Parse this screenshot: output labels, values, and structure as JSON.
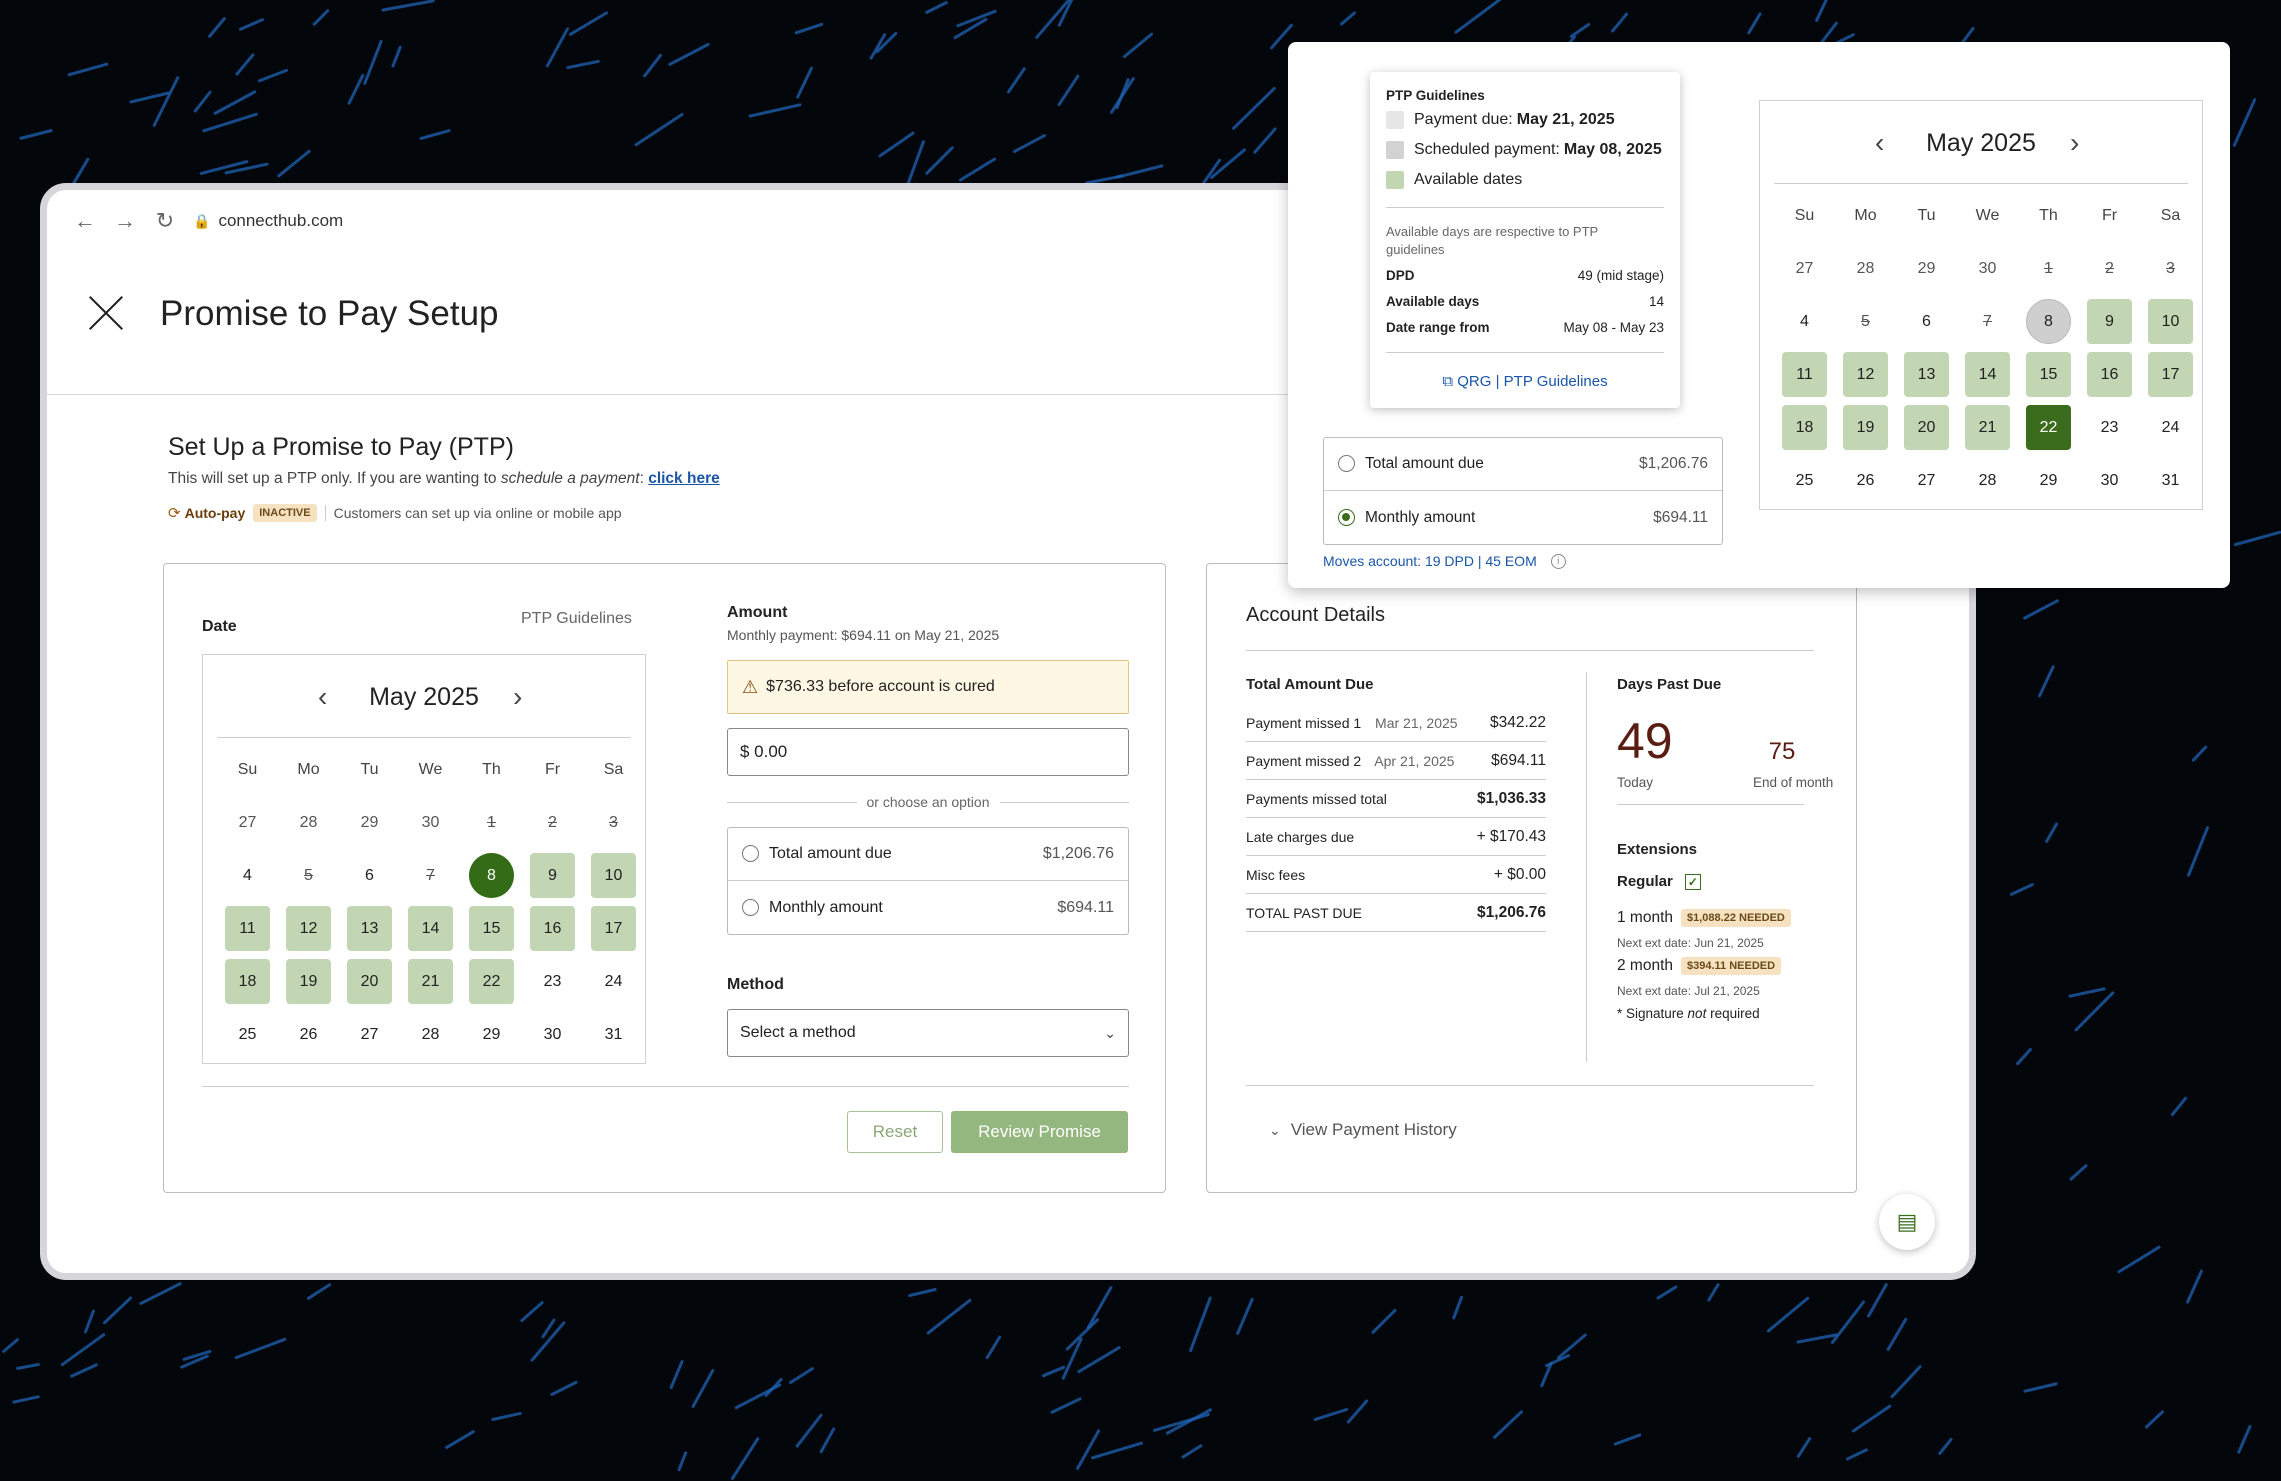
{
  "browser": {
    "url": "connecthub.com"
  },
  "header": {
    "title": "Promise to Pay Setup"
  },
  "intro": {
    "heading": "Set Up a Promise to Pay (PTP)",
    "text_before": "This will set up a PTP only. If you are wanting to ",
    "text_em": "schedule a payment",
    "text_after": ": ",
    "link": "click here",
    "autopay_label": "Auto-pay",
    "autopay_status": "INACTIVE",
    "autopay_note": "Customers can set up via online or mobile app"
  },
  "date_section": {
    "label": "Date",
    "guidelines_link": "PTP Guidelines"
  },
  "calendar": {
    "month": "May 2025",
    "weekdays": [
      "Su",
      "Mo",
      "Tu",
      "We",
      "Th",
      "Fr",
      "Sa"
    ],
    "main_days": [
      {
        "d": "27",
        "s": "out"
      },
      {
        "d": "28",
        "s": "out"
      },
      {
        "d": "29",
        "s": "out"
      },
      {
        "d": "30",
        "s": "out"
      },
      {
        "d": "1",
        "s": "strike"
      },
      {
        "d": "2",
        "s": "strike"
      },
      {
        "d": "3",
        "s": "strike"
      },
      {
        "d": "4",
        "s": ""
      },
      {
        "d": "5",
        "s": "strike"
      },
      {
        "d": "6",
        "s": ""
      },
      {
        "d": "7",
        "s": "strike"
      },
      {
        "d": "8",
        "s": "selc"
      },
      {
        "d": "9",
        "s": "av"
      },
      {
        "d": "10",
        "s": "av"
      },
      {
        "d": "11",
        "s": "av"
      },
      {
        "d": "12",
        "s": "av"
      },
      {
        "d": "13",
        "s": "av"
      },
      {
        "d": "14",
        "s": "av"
      },
      {
        "d": "15",
        "s": "av"
      },
      {
        "d": "16",
        "s": "av"
      },
      {
        "d": "17",
        "s": "av"
      },
      {
        "d": "18",
        "s": "av"
      },
      {
        "d": "19",
        "s": "av"
      },
      {
        "d": "20",
        "s": "av"
      },
      {
        "d": "21",
        "s": "av"
      },
      {
        "d": "22",
        "s": "av"
      },
      {
        "d": "23",
        "s": ""
      },
      {
        "d": "24",
        "s": ""
      },
      {
        "d": "25",
        "s": ""
      },
      {
        "d": "26",
        "s": ""
      },
      {
        "d": "27",
        "s": ""
      },
      {
        "d": "28",
        "s": ""
      },
      {
        "d": "29",
        "s": ""
      },
      {
        "d": "30",
        "s": ""
      },
      {
        "d": "31",
        "s": ""
      }
    ],
    "popup_days": [
      {
        "d": "27",
        "s": "out"
      },
      {
        "d": "28",
        "s": "out"
      },
      {
        "d": "29",
        "s": "out"
      },
      {
        "d": "30",
        "s": "out"
      },
      {
        "d": "1",
        "s": "strike"
      },
      {
        "d": "2",
        "s": "strike"
      },
      {
        "d": "3",
        "s": "strike"
      },
      {
        "d": "4",
        "s": ""
      },
      {
        "d": "5",
        "s": "strike"
      },
      {
        "d": "6",
        "s": ""
      },
      {
        "d": "7",
        "s": "strike"
      },
      {
        "d": "8",
        "s": "grayc"
      },
      {
        "d": "9",
        "s": "av"
      },
      {
        "d": "10",
        "s": "av"
      },
      {
        "d": "11",
        "s": "av"
      },
      {
        "d": "12",
        "s": "av"
      },
      {
        "d": "13",
        "s": "av"
      },
      {
        "d": "14",
        "s": "av"
      },
      {
        "d": "15",
        "s": "av"
      },
      {
        "d": "16",
        "s": "av"
      },
      {
        "d": "17",
        "s": "av"
      },
      {
        "d": "18",
        "s": "av"
      },
      {
        "d": "19",
        "s": "av"
      },
      {
        "d": "20",
        "s": "av"
      },
      {
        "d": "21",
        "s": "av"
      },
      {
        "d": "22",
        "s": "sel"
      },
      {
        "d": "23",
        "s": ""
      },
      {
        "d": "24",
        "s": ""
      },
      {
        "d": "25",
        "s": ""
      },
      {
        "d": "26",
        "s": ""
      },
      {
        "d": "27",
        "s": ""
      },
      {
        "d": "28",
        "s": ""
      },
      {
        "d": "29",
        "s": ""
      },
      {
        "d": "30",
        "s": ""
      },
      {
        "d": "31",
        "s": ""
      }
    ]
  },
  "amount": {
    "label": "Amount",
    "subtitle": "Monthly payment: $694.11 on May 21, 2025",
    "warning": "$736.33 before account is cured",
    "input_value": "$ 0.00",
    "divider": "or choose an option",
    "options": [
      {
        "label": "Total amount due",
        "value": "$1,206.76"
      },
      {
        "label": "Monthly amount",
        "value": "$694.11"
      }
    ]
  },
  "method": {
    "label": "Method",
    "placeholder": "Select a method"
  },
  "buttons": {
    "reset": "Reset",
    "review": "Review Promise"
  },
  "account": {
    "title": "Account Details",
    "total_due_title": "Total Amount Due",
    "rows": [
      {
        "label": "Payment missed 1",
        "date": "Mar 21, 2025",
        "value": "$342.22",
        "bold": false
      },
      {
        "label": "Payment missed 2",
        "date": "Apr 21, 2025",
        "value": "$694.11",
        "bold": false
      },
      {
        "label": "Payments missed total",
        "date": "",
        "value": "$1,036.33",
        "bold": true
      },
      {
        "label": "Late charges due",
        "date": "",
        "value": "+ $170.43",
        "bold": false
      },
      {
        "label": "Misc fees",
        "date": "",
        "value": "+ $0.00",
        "bold": false
      },
      {
        "label": "TOTAL PAST DUE",
        "date": "",
        "value": "$1,206.76",
        "bold": true
      }
    ],
    "dpd_title": "Days Past Due",
    "dpd_today": "49",
    "dpd_today_label": "Today",
    "dpd_eom": "75",
    "dpd_eom_label": "End of month",
    "extensions_title": "Extensions",
    "regular_label": "Regular",
    "ext": [
      {
        "label": "1 month",
        "badge": "$1,088.22 NEEDED",
        "note": "Next ext date: Jun 21, 2025"
      },
      {
        "label": "2 month",
        "badge": "$394.11 NEEDED",
        "note": "Next ext date: Jul 21, 2025"
      }
    ],
    "sig_before": "* Signature ",
    "sig_em": "not",
    "sig_after": " required",
    "history": "View Payment History"
  },
  "popup": {
    "tip_title": "PTP Guidelines",
    "legend": [
      {
        "label": "Payment due: ",
        "value": "May 21, 2025",
        "color": "#e6e6e6"
      },
      {
        "label": "Scheduled payment: ",
        "value": "May 08, 2025",
        "color": "#d2d2d2"
      },
      {
        "label": "Available dates",
        "value": "",
        "color": "#c3d6b4"
      }
    ],
    "note": "Available days are respective to PTP guidelines",
    "kv": [
      {
        "k": "DPD",
        "v": "49 (mid stage)"
      },
      {
        "k": "Available days",
        "v": "14"
      },
      {
        "k": "Date range from",
        "v": "May 08 - May 23"
      }
    ],
    "qrg": "QRG | PTP Guidelines",
    "options": [
      {
        "label": "Total amount due",
        "value": "$1,206.76"
      },
      {
        "label": "Monthly amount",
        "value": "$694.11"
      }
    ],
    "moves": "Moves account: 19 DPD | 45 EOM"
  },
  "colors": {
    "accent_green": "#3a6c1b",
    "available": "#c3d6b4",
    "link": "#1a55a8",
    "dpd": "#5a1d12"
  }
}
